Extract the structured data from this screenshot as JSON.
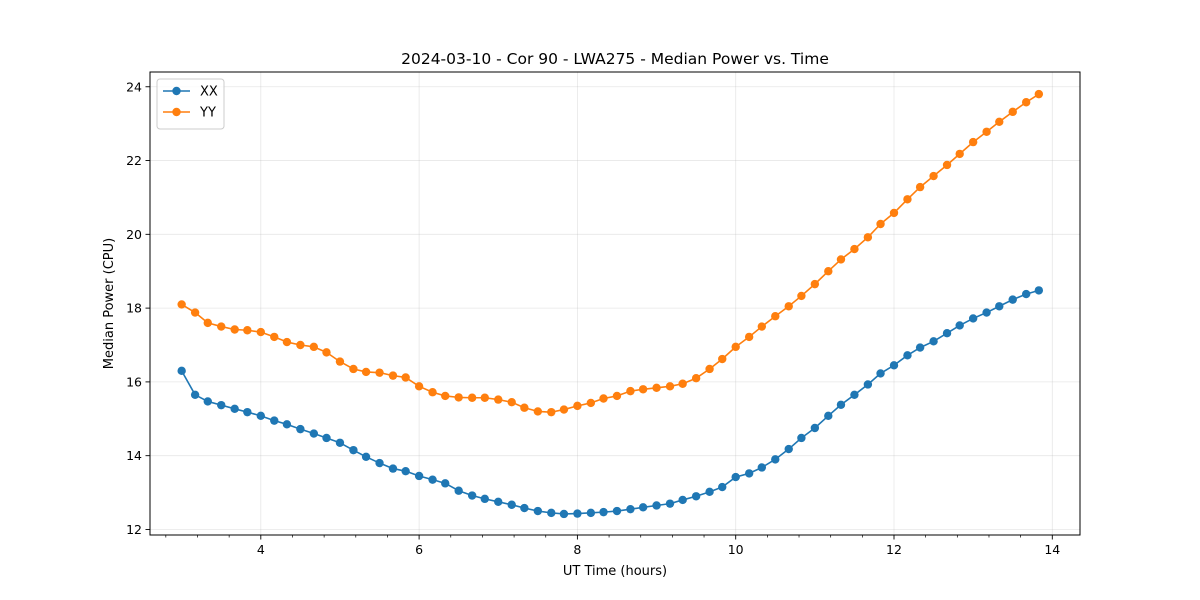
{
  "chart_data": {
    "type": "line",
    "title": "2024-03-10 - Cor 90 - LWA275 - Median Power vs. Time",
    "xlabel": "UT Time (hours)",
    "ylabel": "Median Power (CPU)",
    "xlim": [
      2.6,
      14.35
    ],
    "ylim": [
      11.85,
      24.4
    ],
    "xticks": [
      4,
      6,
      8,
      10,
      12,
      14
    ],
    "xtick_labels": [
      "4",
      "6",
      "8",
      "10",
      "12",
      "14"
    ],
    "yticks": [
      12,
      14,
      16,
      18,
      20,
      22,
      24
    ],
    "ytick_labels": [
      "12",
      "14",
      "16",
      "18",
      "20",
      "22",
      "24"
    ],
    "grid": true,
    "legend_position": "top-left",
    "marker": "circle",
    "x": [
      3.0,
      3.17,
      3.33,
      3.5,
      3.67,
      3.83,
      4.0,
      4.17,
      4.33,
      4.5,
      4.67,
      4.83,
      5.0,
      5.17,
      5.33,
      5.5,
      5.67,
      5.83,
      6.0,
      6.17,
      6.33,
      6.5,
      6.67,
      6.83,
      7.0,
      7.17,
      7.33,
      7.5,
      7.67,
      7.83,
      8.0,
      8.17,
      8.33,
      8.5,
      8.67,
      8.83,
      9.0,
      9.17,
      9.33,
      9.5,
      9.67,
      9.83,
      10.0,
      10.17,
      10.33,
      10.5,
      10.67,
      10.83,
      11.0,
      11.17,
      11.33,
      11.5,
      11.67,
      11.83,
      12.0,
      12.17,
      12.33,
      12.5,
      12.67,
      12.83,
      13.0,
      13.17,
      13.33,
      13.5,
      13.67,
      13.83
    ],
    "series": [
      {
        "name": "XX",
        "color": "#1f77b4",
        "values": [
          16.3,
          15.65,
          15.47,
          15.37,
          15.27,
          15.18,
          15.08,
          14.95,
          14.85,
          14.72,
          14.6,
          14.48,
          14.35,
          14.15,
          13.97,
          13.8,
          13.65,
          13.58,
          13.45,
          13.35,
          13.25,
          13.05,
          12.92,
          12.83,
          12.75,
          12.67,
          12.58,
          12.5,
          12.45,
          12.42,
          12.43,
          12.45,
          12.47,
          12.5,
          12.55,
          12.6,
          12.65,
          12.7,
          12.8,
          12.9,
          13.02,
          13.15,
          13.42,
          13.52,
          13.68,
          13.9,
          14.18,
          14.48,
          14.75,
          15.08,
          15.38,
          15.65,
          15.93,
          16.23,
          16.45,
          16.72,
          16.93,
          17.1,
          17.32,
          17.53,
          17.72,
          17.88,
          18.05,
          18.23,
          18.38,
          18.48
        ]
      },
      {
        "name": "YY",
        "color": "#ff7f0e",
        "values": [
          18.1,
          17.88,
          17.6,
          17.5,
          17.42,
          17.4,
          17.35,
          17.22,
          17.08,
          17.0,
          16.95,
          16.8,
          16.55,
          16.35,
          16.27,
          16.25,
          16.17,
          16.12,
          15.88,
          15.72,
          15.62,
          15.58,
          15.57,
          15.57,
          15.52,
          15.45,
          15.3,
          15.2,
          15.18,
          15.25,
          15.35,
          15.43,
          15.55,
          15.62,
          15.75,
          15.8,
          15.84,
          15.88,
          15.95,
          16.1,
          16.35,
          16.62,
          16.95,
          17.22,
          17.5,
          17.78,
          18.05,
          18.33,
          18.65,
          19.0,
          19.32,
          19.6,
          19.92,
          20.28,
          20.58,
          20.95,
          21.28,
          21.58,
          21.88,
          22.18,
          22.5,
          22.78,
          23.05,
          23.32,
          23.58,
          23.8
        ]
      }
    ]
  }
}
